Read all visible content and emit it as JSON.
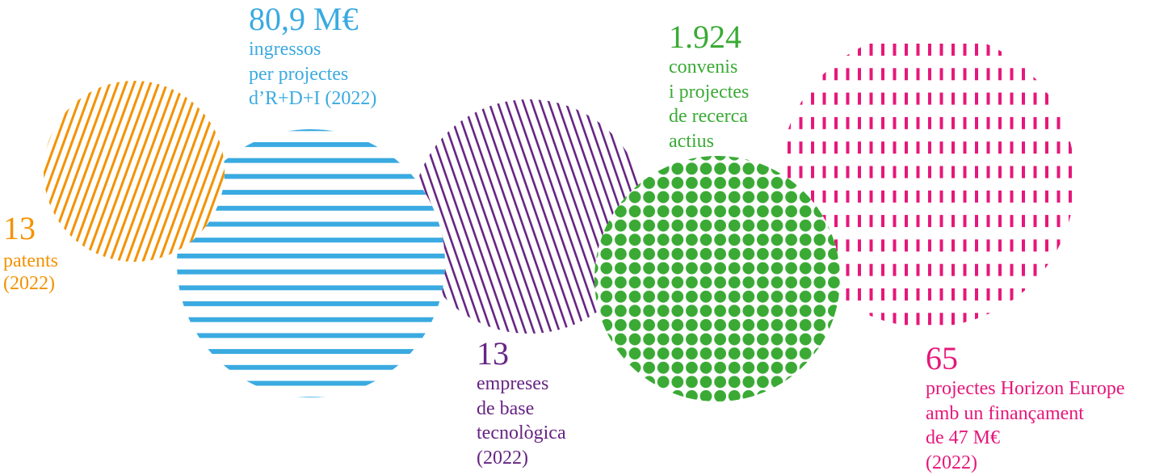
{
  "colors": {
    "orange": "#F39200",
    "blue": "#3AAAE1",
    "purple": "#662483",
    "green": "#3AAA35",
    "pink": "#E6177A"
  },
  "stats": [
    {
      "value": "13",
      "lines": [
        "patents",
        "(2022)"
      ],
      "pattern": "diagonal-stripes"
    },
    {
      "value": "80,9 M€",
      "lines": [
        "ingressos",
        "per projectes",
        "d’R+D+I (2022)"
      ],
      "pattern": "horizontal-stripes"
    },
    {
      "value": "13",
      "lines": [
        "empreses",
        "de base",
        "tecnològica",
        "(2022)"
      ],
      "pattern": "diagonal-stripes"
    },
    {
      "value": "1.924",
      "lines": [
        "convenis",
        "i projectes",
        "de recerca",
        "actius"
      ],
      "pattern": "dots"
    },
    {
      "value": "65",
      "lines": [
        "projectes Horizon Europe",
        "amb un finançament",
        "de 47 M€",
        "(2022)"
      ],
      "pattern": "vertical-dashes"
    }
  ]
}
